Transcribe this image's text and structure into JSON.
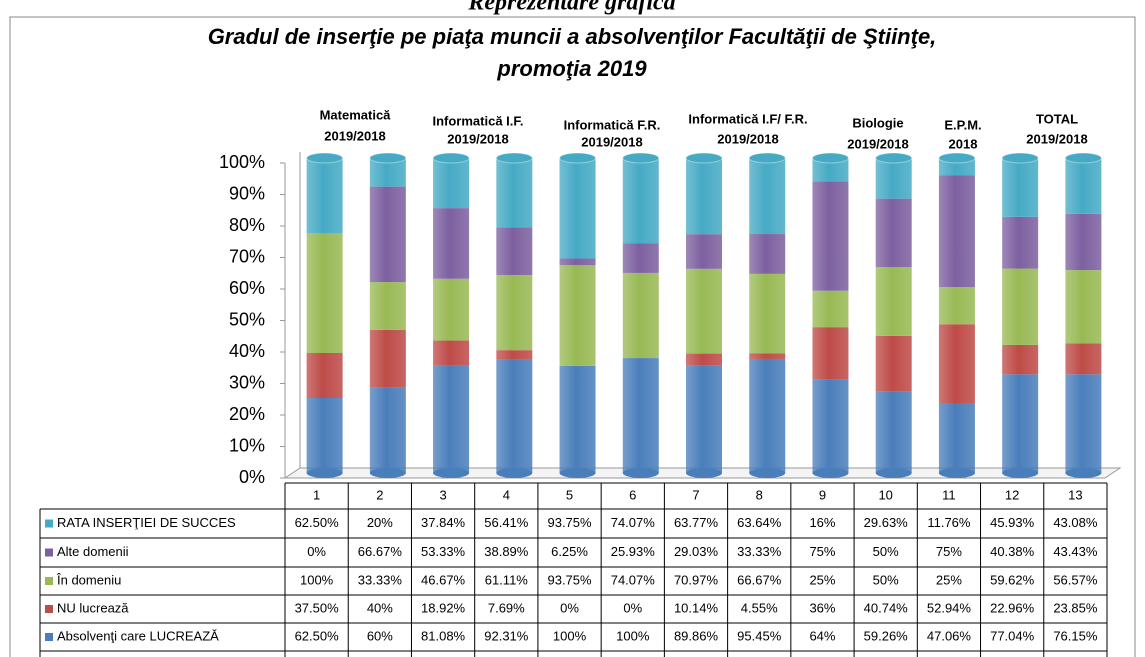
{
  "chart_data": {
    "type": "bar",
    "stacked": "percent",
    "heading": "Reprezentare grafică",
    "title": "Gradul de inserţie pe piaţa muncii a absolvenţilor Facultăţii de Ştiinţe,",
    "subtitle": "promoţia 2019",
    "group_labels": [
      [
        "Matematică",
        "2019/2018"
      ],
      [
        "Informatică I.F.",
        "2019/2018"
      ],
      [
        "Informatică F.R.",
        "2019/2018"
      ],
      [
        "Informatică I.F/ F.R.",
        "2019/2018"
      ],
      [
        "Biologie",
        "2019/2018"
      ],
      [
        "E.P.M.",
        "2018"
      ],
      [
        "TOTAL",
        "2019/2018"
      ]
    ],
    "categories": [
      "1",
      "2",
      "3",
      "4",
      "5",
      "6",
      "7",
      "8",
      "9",
      "10",
      "11",
      "12",
      "13"
    ],
    "ylim": [
      0,
      100
    ],
    "yticks": [
      {
        "value": 0,
        "label": "0%"
      },
      {
        "value": 10,
        "label": "10%"
      },
      {
        "value": 20,
        "label": "20%"
      },
      {
        "value": 30,
        "label": "30%"
      },
      {
        "value": 40,
        "label": "40%"
      },
      {
        "value": 50,
        "label": "50%"
      },
      {
        "value": 60,
        "label": "60%"
      },
      {
        "value": 70,
        "label": "70%"
      },
      {
        "value": 80,
        "label": "80%"
      },
      {
        "value": 90,
        "label": "90%"
      },
      {
        "value": 100,
        "label": "100%"
      }
    ],
    "series": [
      {
        "name": "Absolvenţi care LUCREAZĂ",
        "color": "#4a7ebb",
        "values": [
          62.5,
          60,
          81.08,
          92.31,
          100,
          100,
          89.86,
          95.45,
          64,
          59.26,
          47.06,
          77.04,
          76.15
        ],
        "value_labels": [
          "62.50%",
          "60%",
          "81.08%",
          "92.31%",
          "100%",
          "100%",
          "89.86%",
          "95.45%",
          "64%",
          "59.26%",
          "47.06%",
          "77.04%",
          "76.15%"
        ]
      },
      {
        "name": "NU lucrează",
        "color": "#be4b48",
        "values": [
          37.5,
          40,
          18.92,
          7.69,
          0,
          0,
          10.14,
          4.55,
          36,
          40.74,
          52.94,
          22.96,
          23.85
        ],
        "value_labels": [
          "37.50%",
          "40%",
          "18.92%",
          "7.69%",
          "0%",
          "0%",
          "10.14%",
          "4.55%",
          "36%",
          "40.74%",
          "52.94%",
          "22.96%",
          "23.85%"
        ]
      },
      {
        "name": "În domeniu",
        "color": "#98b954",
        "values": [
          100,
          33.33,
          46.67,
          61.11,
          93.75,
          74.07,
          70.97,
          66.67,
          25,
          50,
          25,
          59.62,
          56.57
        ],
        "value_labels": [
          "100%",
          "33.33%",
          "46.67%",
          "61.11%",
          "93.75%",
          "74.07%",
          "70.97%",
          "66.67%",
          "25%",
          "50%",
          "25%",
          "59.62%",
          "56.57%"
        ]
      },
      {
        "name": "Alte  domenii",
        "color": "#7d60a0",
        "values": [
          0,
          66.67,
          53.33,
          38.89,
          6.25,
          25.93,
          29.03,
          33.33,
          75,
          50,
          75,
          40.38,
          43.43
        ],
        "value_labels": [
          "0%",
          "66.67%",
          "53.33%",
          "38.89%",
          "6.25%",
          "25.93%",
          "29.03%",
          "33.33%",
          "75%",
          "50%",
          "75%",
          "40.38%",
          "43.43%"
        ]
      },
      {
        "name": "RATA INSERŢIEI DE  SUCCES",
        "color": "#46aac5",
        "values": [
          62.5,
          20,
          37.84,
          56.41,
          93.75,
          74.07,
          63.77,
          63.64,
          16,
          29.63,
          11.76,
          45.93,
          43.08
        ],
        "value_labels": [
          "62.50%",
          "20%",
          "37.84%",
          "56.41%",
          "93.75%",
          "74.07%",
          "63.77%",
          "63.64%",
          "16%",
          "29.63%",
          "11.76%",
          "45.93%",
          "43.08%"
        ]
      }
    ]
  }
}
